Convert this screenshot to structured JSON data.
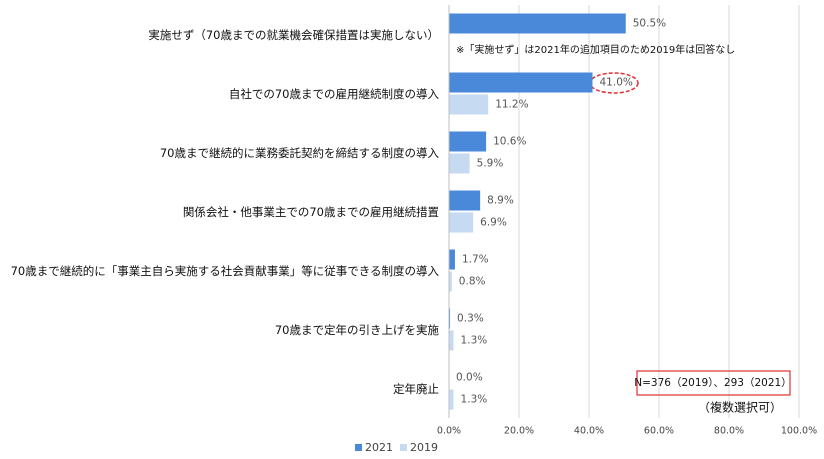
{
  "chart_data": {
    "type": "bar",
    "orientation": "horizontal",
    "categories": [
      "実施せず（70歳までの就業機会確保措置は実施しない）",
      "自社での70歳までの雇用継続制度の導入",
      "70歳まで継続的に業務委託契約を締結する制度の導入",
      "関係会社・他事業主での70歳までの雇用継続措置",
      "70歳まで継続的に「事業主自ら実施する社会貢献事業」等に従事できる制度の導入",
      "70歳まで定年の引き上げを実施",
      "定年廃止"
    ],
    "series": [
      {
        "name": "2021",
        "color": "#4a89d9",
        "values": [
          50.5,
          41.0,
          10.6,
          8.9,
          1.7,
          0.3,
          0.0
        ],
        "value_labels": [
          "50.5%",
          "41.0%",
          "10.6%",
          "8.9%",
          "1.7%",
          "0.3%",
          "0.0%"
        ]
      },
      {
        "name": "2019",
        "color": "#c6daf2",
        "values": [
          null,
          11.2,
          5.9,
          6.9,
          0.8,
          1.3,
          1.3
        ],
        "value_labels": [
          null,
          "11.2%",
          "5.9%",
          "6.9%",
          "0.8%",
          "1.3%",
          "1.3%"
        ]
      }
    ],
    "xlim": [
      0,
      100
    ],
    "xticks": [
      {
        "value": 0,
        "label": "0.0%"
      },
      {
        "value": 20,
        "label": "20.0%"
      },
      {
        "value": 40,
        "label": "40.0%"
      },
      {
        "value": 60,
        "label": "60.0%"
      },
      {
        "value": 80,
        "label": "80.0%"
      },
      {
        "value": 100,
        "label": "100.0%"
      }
    ],
    "grid": true,
    "annotations": [
      "※「実施せず」は2021年の追加項目のため2019年は回答なし",
      "N=376（2019）、293（2021）",
      "（複数選択可）"
    ]
  }
}
